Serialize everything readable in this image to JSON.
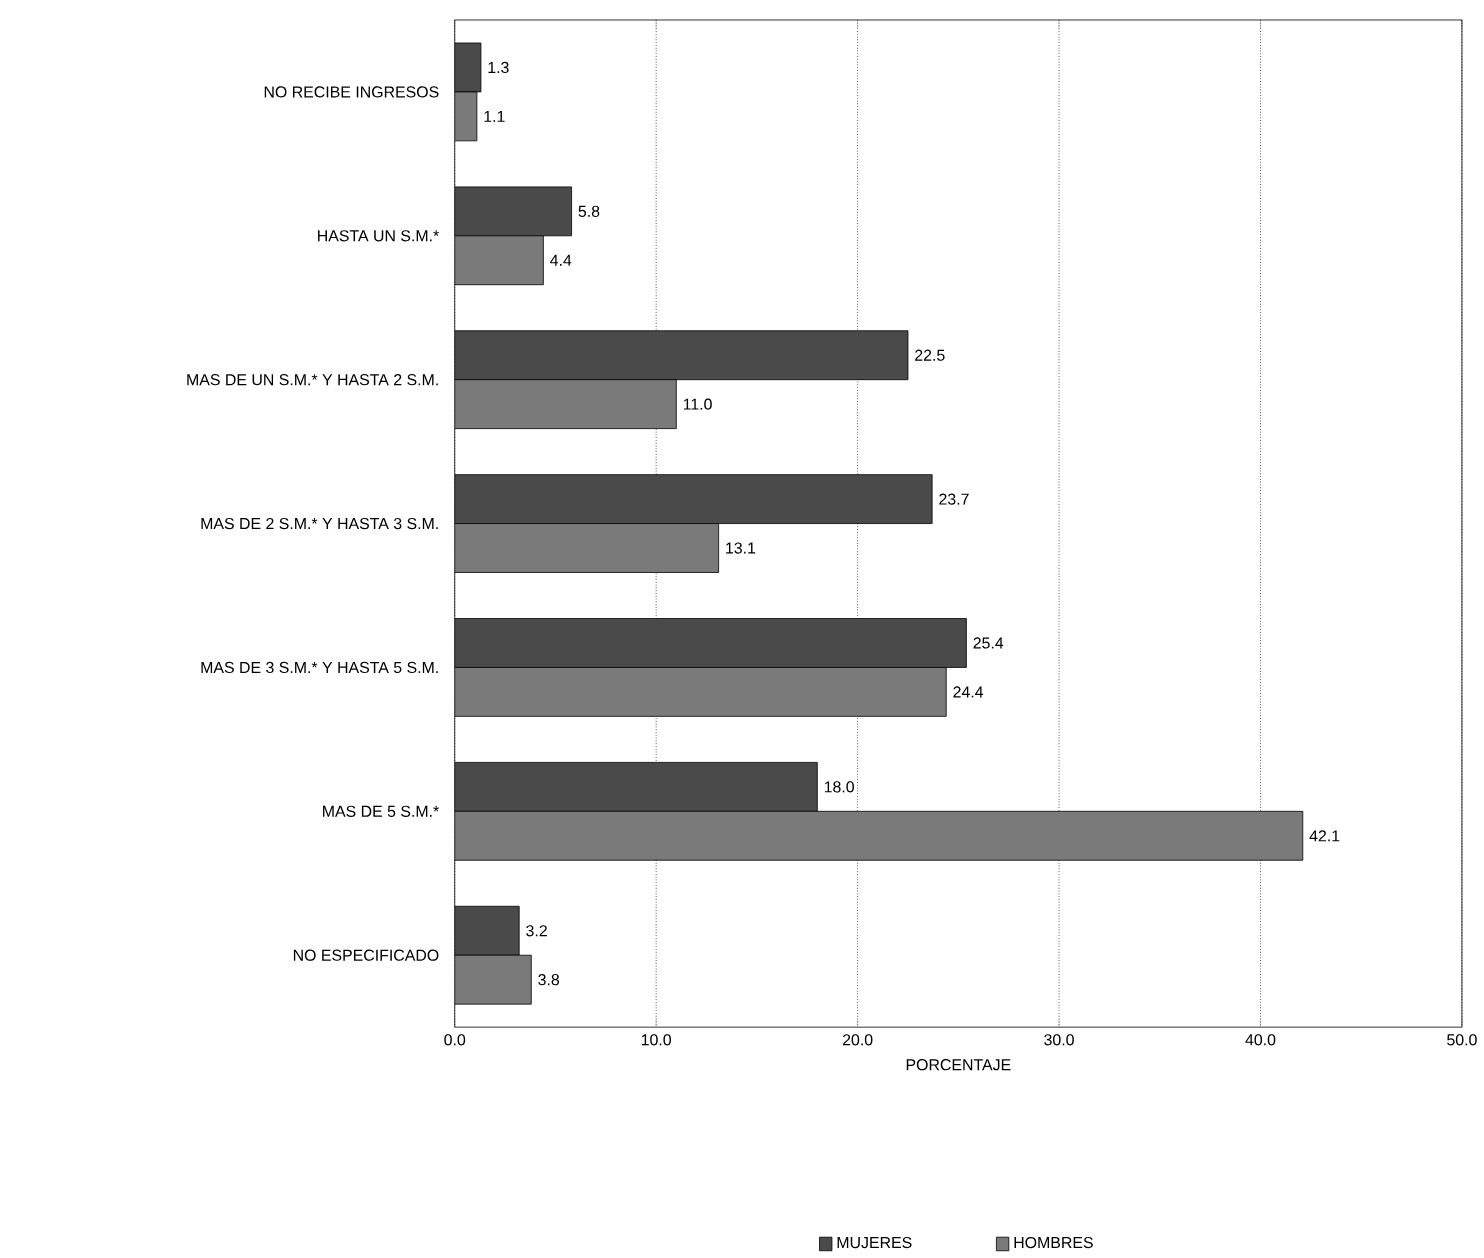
{
  "chart_data": {
    "type": "bar",
    "orientation": "horizontal",
    "xlabel": "PORCENTAJE",
    "categories": [
      "NO RECIBE INGRESOS",
      "HASTA UN S.M.*",
      "MAS DE UN S.M.* Y HASTA 2 S.M.",
      "MAS DE 2 S.M.* Y HASTA 3 S.M.",
      "MAS DE 3 S.M.* Y HASTA 5 S.M.",
      "MAS DE 5 S.M.*",
      "NO ESPECIFICADO"
    ],
    "series": [
      {
        "name": "MUJERES",
        "color": "#4a4a4a",
        "values": [
          1.3,
          5.8,
          22.5,
          23.7,
          25.4,
          18.0,
          3.2
        ],
        "value_labels": [
          "1.3",
          "5.8",
          "22.5",
          "23.7",
          "25.4",
          "18.0",
          "3.2"
        ]
      },
      {
        "name": "HOMBRES",
        "color": "#7a7a7a",
        "values": [
          1.1,
          4.4,
          11.0,
          13.1,
          24.4,
          42.1,
          3.8
        ],
        "value_labels": [
          "1.1",
          "4.4",
          "11.0",
          "13.1",
          "24.4",
          "42.1",
          "3.8"
        ]
      }
    ],
    "xlim": [
      0,
      50
    ],
    "xticks": [
      {
        "value": 0,
        "label": "0.0"
      },
      {
        "value": 10,
        "label": "10.0"
      },
      {
        "value": 20,
        "label": "20.0"
      },
      {
        "value": 30,
        "label": "30.0"
      },
      {
        "value": 40,
        "label": "40.0"
      },
      {
        "value": 50,
        "label": "50.0"
      }
    ],
    "grid": "x",
    "legend": "bottom"
  }
}
